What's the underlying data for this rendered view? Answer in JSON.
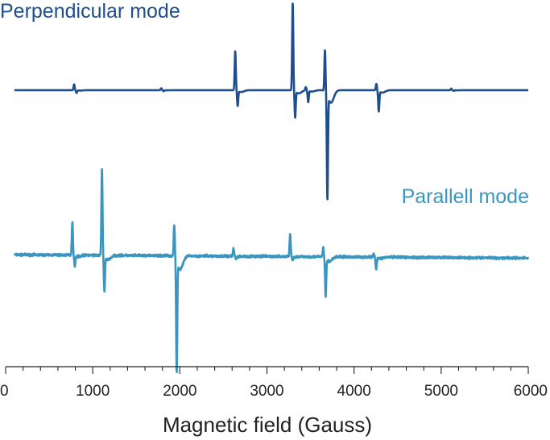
{
  "chart_data": {
    "type": "line",
    "title": "",
    "xlabel": "Magnetic field  (Gauss)",
    "ylabel": "",
    "xlim": [
      0,
      6000
    ],
    "ylim": [
      -3.4,
      7.3
    ],
    "grid": false,
    "x_ticks": [
      0,
      1000,
      2000,
      3000,
      4000,
      5000,
      6000
    ],
    "x_tick_labels": [
      "0",
      "1000",
      "2000",
      "3000",
      "4000",
      "5000",
      "6000"
    ],
    "x_minor_step": 200,
    "series": [
      {
        "name": "Perpendicular mode",
        "color": "#1f4e8c",
        "baseline": 5.0,
        "baseline_slope": 0.0,
        "noise": 0.0,
        "features": [
          {
            "x": 800,
            "pos": 0.18,
            "neg": -0.08
          },
          {
            "x": 1800,
            "pos": 0.06,
            "neg": -0.03
          },
          {
            "x": 2650,
            "pos": 1.2,
            "neg": -0.46
          },
          {
            "x": 3310,
            "pos": 2.67,
            "neg": -0.8
          },
          {
            "x": 3460,
            "pos": 0.1,
            "neg": -0.35
          },
          {
            "x": 3680,
            "pos": 1.26,
            "neg": -3.18
          },
          {
            "x": 4270,
            "pos": 0.2,
            "neg": -0.62
          },
          {
            "x": 5130,
            "pos": 0.05,
            "neg": -0.02
          }
        ]
      },
      {
        "name": "Parallell mode",
        "color": "#3a96c0",
        "baseline": 0.0,
        "baseline_slope": -0.1,
        "noise": 0.035,
        "features": [
          {
            "x": 780,
            "pos": 1.03,
            "neg": -0.33
          },
          {
            "x": 1120,
            "pos": 2.65,
            "neg": -1.06
          },
          {
            "x": 1950,
            "pos": 1.0,
            "neg": -3.4
          },
          {
            "x": 2630,
            "pos": 0.24,
            "neg": -0.07
          },
          {
            "x": 3280,
            "pos": 0.68,
            "neg": -0.12
          },
          {
            "x": 3660,
            "pos": 0.3,
            "neg": -1.18
          },
          {
            "x": 4240,
            "pos": 0.1,
            "neg": -0.35
          }
        ]
      }
    ]
  }
}
